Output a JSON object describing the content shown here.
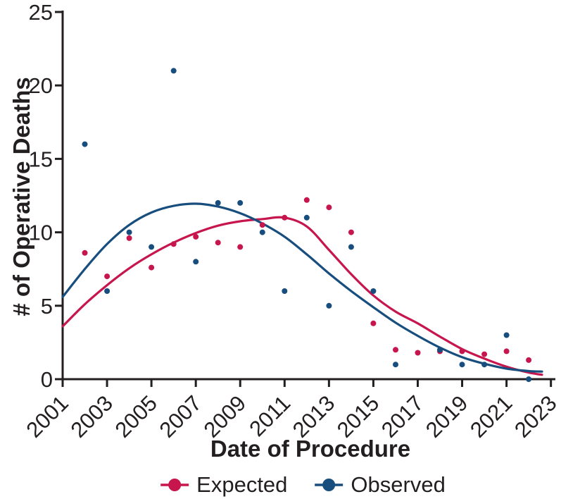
{
  "chart_data": {
    "type": "scatter",
    "title": "",
    "xlabel": "Date of Procedure",
    "ylabel": "# of Operative Deaths",
    "xlim": [
      2001,
      2023.3
    ],
    "ylim": [
      0,
      25
    ],
    "y_ticks": [
      0,
      5,
      10,
      15,
      20,
      25
    ],
    "x_ticks": [
      2001,
      2003,
      2005,
      2007,
      2009,
      2011,
      2013,
      2015,
      2017,
      2019,
      2021,
      2023
    ],
    "grid": false,
    "legend_position": "bottom-center",
    "axis_color": "#231f20",
    "series": [
      {
        "name": "Expected",
        "color": "#c6164d",
        "points": [
          [
            2002,
            8.6
          ],
          [
            2003,
            7.0
          ],
          [
            2004,
            9.6
          ],
          [
            2005,
            7.6
          ],
          [
            2006,
            9.2
          ],
          [
            2007,
            9.7
          ],
          [
            2008,
            9.3
          ],
          [
            2009,
            9.0
          ],
          [
            2010,
            10.5
          ],
          [
            2011,
            11.0
          ],
          [
            2012,
            12.2
          ],
          [
            2013,
            11.7
          ],
          [
            2014,
            10.0
          ],
          [
            2015,
            3.8
          ],
          [
            2016,
            2.0
          ],
          [
            2017,
            1.8
          ],
          [
            2018,
            1.9
          ],
          [
            2019,
            1.9
          ],
          [
            2020,
            1.7
          ],
          [
            2021,
            1.9
          ],
          [
            2022,
            1.3
          ]
        ],
        "curve": [
          [
            2001,
            3.6
          ],
          [
            2002,
            5.1
          ],
          [
            2003,
            6.4
          ],
          [
            2004,
            7.55
          ],
          [
            2005,
            8.5
          ],
          [
            2006,
            9.3
          ],
          [
            2007,
            9.95
          ],
          [
            2008,
            10.45
          ],
          [
            2009,
            10.75
          ],
          [
            2010,
            10.9
          ],
          [
            2011,
            11.0
          ],
          [
            2012,
            10.4
          ],
          [
            2013,
            8.8
          ],
          [
            2014,
            7.15
          ],
          [
            2015,
            5.7
          ],
          [
            2016,
            4.6
          ],
          [
            2017,
            3.8
          ],
          [
            2018,
            2.9
          ],
          [
            2019,
            2.05
          ],
          [
            2020,
            1.4
          ],
          [
            2021,
            0.85
          ],
          [
            2022,
            0.45
          ],
          [
            2022.6,
            0.3
          ]
        ]
      },
      {
        "name": "Observed",
        "color": "#174e7e",
        "points": [
          [
            2002,
            16
          ],
          [
            2003,
            6
          ],
          [
            2004,
            10
          ],
          [
            2005,
            9
          ],
          [
            2006,
            21
          ],
          [
            2007,
            8
          ],
          [
            2008,
            12
          ],
          [
            2009,
            12
          ],
          [
            2010,
            10
          ],
          [
            2011,
            6
          ],
          [
            2012,
            11
          ],
          [
            2013,
            5
          ],
          [
            2014,
            9
          ],
          [
            2015,
            6
          ],
          [
            2016,
            1
          ],
          [
            2018,
            2
          ],
          [
            2019,
            1
          ],
          [
            2020,
            1
          ],
          [
            2021,
            3
          ],
          [
            2022,
            0
          ]
        ],
        "curve": [
          [
            2001,
            5.6
          ],
          [
            2002,
            7.5
          ],
          [
            2003,
            9.2
          ],
          [
            2004,
            10.5
          ],
          [
            2005,
            11.35
          ],
          [
            2006,
            11.8
          ],
          [
            2007,
            11.95
          ],
          [
            2008,
            11.75
          ],
          [
            2009,
            11.3
          ],
          [
            2010,
            10.6
          ],
          [
            2011,
            9.7
          ],
          [
            2012,
            8.5
          ],
          [
            2013,
            7.2
          ],
          [
            2014,
            6.0
          ],
          [
            2015,
            4.9
          ],
          [
            2016,
            3.85
          ],
          [
            2017,
            2.95
          ],
          [
            2018,
            2.15
          ],
          [
            2019,
            1.5
          ],
          [
            2020,
            1.05
          ],
          [
            2021,
            0.72
          ],
          [
            2022,
            0.55
          ],
          [
            2022.6,
            0.52
          ]
        ]
      }
    ]
  }
}
